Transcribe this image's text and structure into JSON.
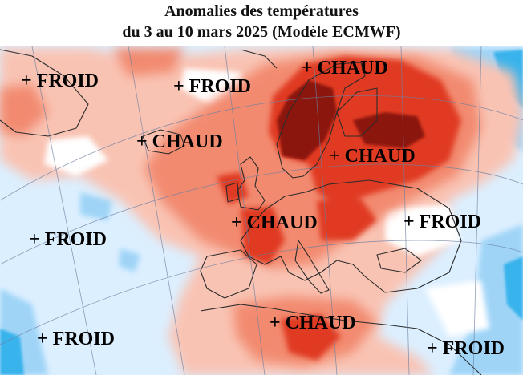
{
  "title": {
    "line1": "Anomalies des températures",
    "line2": "du 3 au 10 mars 2025 (Modèle ECMWF)"
  },
  "map": {
    "palette": {
      "warm_dark": "#8b1210",
      "warm_strong": "#e03a22",
      "warm_medium": "#f28a70",
      "warm_light": "#f9c3b3",
      "cold_light": "#dcefff",
      "cold_medium": "#9fd4f7",
      "cold_strong": "#38b3ec",
      "neutral": "#ffffff"
    },
    "labels": [
      {
        "id": "froid-nw",
        "text": "+ FROID"
      },
      {
        "id": "froid-n-atlantic",
        "text": "+ FROID"
      },
      {
        "id": "chaud-scandinavia",
        "text": "+ CHAUD"
      },
      {
        "id": "chaud-atlantic",
        "text": "+ CHAUD"
      },
      {
        "id": "chaud-russia",
        "text": "+ CHAUD"
      },
      {
        "id": "chaud-central-europe",
        "text": "+ CHAUD"
      },
      {
        "id": "froid-east",
        "text": "+ FROID"
      },
      {
        "id": "froid-w-atlantic",
        "text": "+ FROID"
      },
      {
        "id": "froid-sw-atlantic",
        "text": "+ FROID"
      },
      {
        "id": "chaud-mediterranean",
        "text": "+ CHAUD"
      },
      {
        "id": "froid-se",
        "text": "+ FROID"
      }
    ]
  }
}
